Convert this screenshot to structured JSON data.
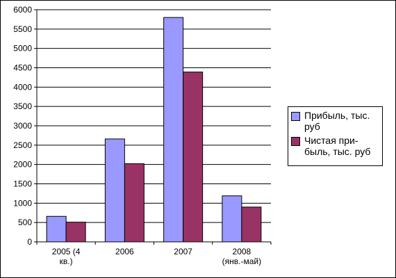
{
  "chart_data": {
    "type": "bar",
    "title": "",
    "xlabel": "",
    "ylabel": "",
    "categories": [
      "2005 (4\nкв.)",
      "2006",
      "2007",
      "2008\n(янв.-май)"
    ],
    "series": [
      {
        "name": "Прибыль, тыс.\nруб",
        "color": "#9999ff",
        "values": [
          660,
          2660,
          5800,
          1190
        ]
      },
      {
        "name": "Чистая при-\nбыль, тыс. руб",
        "color": "#993366",
        "values": [
          510,
          2020,
          4390,
          900
        ]
      }
    ],
    "ylim": [
      0,
      6000
    ],
    "yticks": [
      0,
      500,
      1000,
      1500,
      2000,
      2500,
      3000,
      3500,
      4000,
      4500,
      5000,
      5500,
      6000
    ],
    "grid": true,
    "legend_position": "right"
  }
}
